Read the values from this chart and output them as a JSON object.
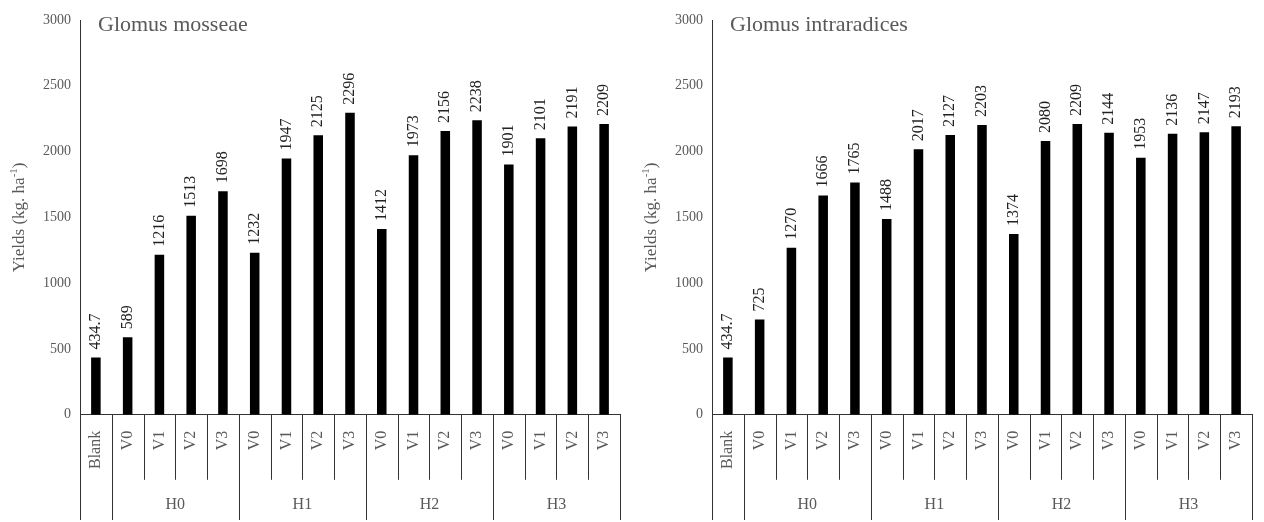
{
  "chart_data": [
    {
      "type": "bar",
      "title": "Glomus mosseae",
      "ylabel": "Yields (kg. ha$^{-1}$)",
      "categories": [
        "Blank",
        "V0",
        "V1",
        "V2",
        "V3",
        "V0",
        "V1",
        "V2",
        "V3",
        "V0",
        "V1",
        "V2",
        "V3",
        "V0",
        "V1",
        "V2",
        "V3"
      ],
      "values": [
        434.7,
        589,
        1216,
        1513,
        1698,
        1232,
        1947,
        2125,
        2296,
        1412,
        1973,
        2156,
        2238,
        1901,
        2101,
        2191,
        2209
      ],
      "color": "#000000",
      "ylim": [
        0,
        3000
      ],
      "yticks": [
        0,
        500,
        1000,
        1500,
        2000,
        2500,
        3000
      ],
      "data_labels": true,
      "annotations": [
        "H0",
        "H1",
        "H2",
        "H3"
      ]
    },
    {
      "type": "bar",
      "title": "Glomus intraradices",
      "ylabel": "Yields (kg. ha$^{-1}$)",
      "categories": [
        "Blank",
        "V0",
        "V1",
        "V2",
        "V3",
        "V0",
        "V1",
        "V2",
        "V3",
        "V0",
        "V1",
        "V2",
        "V3",
        "V0",
        "V1",
        "V2",
        "V3"
      ],
      "values": [
        434.7,
        725,
        1270,
        1666,
        1765,
        1488,
        2017,
        2127,
        2203,
        1374,
        2080,
        2209,
        2144,
        1953,
        2136,
        2147,
        2193
      ],
      "color": "#000000",
      "ylim": [
        0,
        3000
      ],
      "yticks": [
        0,
        500,
        1000,
        1500,
        2000,
        2500,
        3000
      ],
      "data_labels": true,
      "annotations": [
        "H0",
        "H1",
        "H2",
        "H3"
      ]
    }
  ]
}
